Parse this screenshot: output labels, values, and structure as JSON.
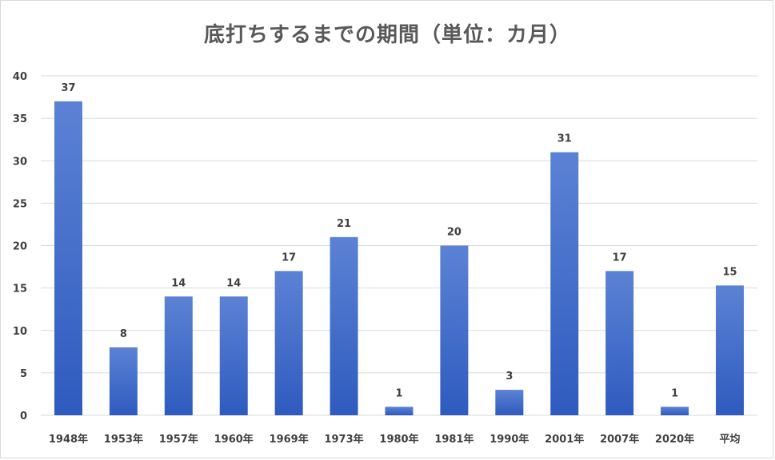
{
  "chart_data": {
    "type": "bar",
    "title": "底打ちするまでの期間（単位：カ月）",
    "categories": [
      "1948年",
      "1953年",
      "1957年",
      "1960年",
      "1969年",
      "1973年",
      "1980年",
      "1981年",
      "1990年",
      "2001年",
      "2007年",
      "2020年",
      "平均"
    ],
    "values": [
      37,
      8,
      14,
      14,
      17,
      21,
      1,
      20,
      3,
      31,
      17,
      1,
      15.3
    ],
    "data_labels": [
      "37",
      "8",
      "14",
      "14",
      "17",
      "21",
      "1",
      "20",
      "3",
      "31",
      "17",
      "1",
      "15"
    ],
    "ylim": [
      0,
      40
    ],
    "yticks": [
      0,
      5,
      10,
      15,
      20,
      25,
      30,
      35,
      40
    ],
    "grid": true,
    "legend": "none",
    "bar_color_top": "#5b82d4",
    "bar_color_bottom": "#2f5bbf",
    "text_color": "#404040",
    "title_color": "#595959"
  }
}
